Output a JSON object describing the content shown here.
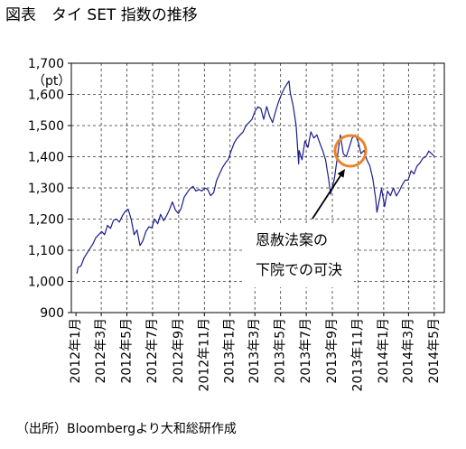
{
  "source": "（出所）Bloombergより大和総研作成",
  "colors": {
    "series": "#1c1c8c",
    "highlight": "#e8852a"
  },
  "chart_data": {
    "type": "line",
    "title": "図表　タイ SET 指数の推移",
    "xlabel": "",
    "ylabel": "（pt）",
    "ylim": [
      900,
      1700
    ],
    "xlim": [
      "2011-12-21",
      "2014-05-25"
    ],
    "grid": true,
    "yticks": [
      {
        "value": 1700,
        "label": "1,700"
      },
      {
        "value": 1600,
        "label": "1,600"
      },
      {
        "value": 1500,
        "label": "1,500"
      },
      {
        "value": 1400,
        "label": "1,400"
      },
      {
        "value": 1300,
        "label": "1,300"
      },
      {
        "value": 1200,
        "label": "1,200"
      },
      {
        "value": 1100,
        "label": "1,100"
      },
      {
        "value": 1000,
        "label": "1,000"
      },
      {
        "value": 900,
        "label": "900"
      }
    ],
    "xticks": [
      {
        "date": "2012-01-01",
        "label": "2012年1月"
      },
      {
        "date": "2012-03-01",
        "label": "2012年3月"
      },
      {
        "date": "2012-05-01",
        "label": "2012年5月"
      },
      {
        "date": "2012-07-01",
        "label": "2012年7月"
      },
      {
        "date": "2012-09-01",
        "label": "2012年9月"
      },
      {
        "date": "2012-11-01",
        "label": "2012年11月"
      },
      {
        "date": "2013-01-01",
        "label": "2013年1月"
      },
      {
        "date": "2013-03-01",
        "label": "2013年3月"
      },
      {
        "date": "2013-05-01",
        "label": "2013年5月"
      },
      {
        "date": "2013-07-01",
        "label": "2013年7月"
      },
      {
        "date": "2013-09-01",
        "label": "2013年9月"
      },
      {
        "date": "2013-11-01",
        "label": "2013年11月"
      },
      {
        "date": "2014-01-01",
        "label": "2014年1月"
      },
      {
        "date": "2014-03-01",
        "label": "2014年3月"
      },
      {
        "date": "2014-05-01",
        "label": "2014年5月"
      }
    ],
    "annotations": [
      "恩赦法案の",
      "下院での可決"
    ],
    "x": [
      "2012-01-03",
      "2012-01-06",
      "2012-01-13",
      "2012-01-20",
      "2012-01-27",
      "2012-02-03",
      "2012-02-10",
      "2012-02-17",
      "2012-02-24",
      "2012-03-02",
      "2012-03-09",
      "2012-03-16",
      "2012-03-23",
      "2012-03-30",
      "2012-04-06",
      "2012-04-13",
      "2012-04-20",
      "2012-04-27",
      "2012-05-04",
      "2012-05-11",
      "2012-05-18",
      "2012-05-25",
      "2012-06-01",
      "2012-06-08",
      "2012-06-15",
      "2012-06-22",
      "2012-06-29",
      "2012-07-06",
      "2012-07-13",
      "2012-07-20",
      "2012-07-27",
      "2012-08-03",
      "2012-08-10",
      "2012-08-17",
      "2012-08-24",
      "2012-08-31",
      "2012-09-07",
      "2012-09-14",
      "2012-09-21",
      "2012-09-28",
      "2012-10-05",
      "2012-10-12",
      "2012-10-19",
      "2012-10-26",
      "2012-11-02",
      "2012-11-09",
      "2012-11-16",
      "2012-11-23",
      "2012-11-30",
      "2012-12-07",
      "2012-12-14",
      "2012-12-21",
      "2012-12-28",
      "2013-01-04",
      "2013-01-11",
      "2013-01-18",
      "2013-01-25",
      "2013-02-01",
      "2013-02-08",
      "2013-02-15",
      "2013-02-22",
      "2013-03-01",
      "2013-03-08",
      "2013-03-15",
      "2013-03-22",
      "2013-03-29",
      "2013-04-05",
      "2013-04-12",
      "2013-04-19",
      "2013-04-26",
      "2013-05-03",
      "2013-05-10",
      "2013-05-17",
      "2013-05-21",
      "2013-05-24",
      "2013-05-31",
      "2013-06-07",
      "2013-06-13",
      "2013-06-14",
      "2013-06-21",
      "2013-06-28",
      "2013-07-05",
      "2013-07-12",
      "2013-07-19",
      "2013-07-26",
      "2013-08-02",
      "2013-08-09",
      "2013-08-16",
      "2013-08-23",
      "2013-08-28",
      "2013-08-30",
      "2013-09-06",
      "2013-09-13",
      "2013-09-20",
      "2013-09-27",
      "2013-10-04",
      "2013-10-11",
      "2013-10-18",
      "2013-10-25",
      "2013-11-01",
      "2013-11-08",
      "2013-11-15",
      "2013-11-22",
      "2013-11-29",
      "2013-12-06",
      "2013-12-13",
      "2013-12-16",
      "2013-12-20",
      "2013-12-27",
      "2014-01-03",
      "2014-01-10",
      "2014-01-17",
      "2014-01-24",
      "2014-01-31",
      "2014-02-07",
      "2014-02-14",
      "2014-02-21",
      "2014-02-28",
      "2014-03-07",
      "2014-03-14",
      "2014-03-21",
      "2014-03-28",
      "2014-04-04",
      "2014-04-11",
      "2014-04-18",
      "2014-04-25",
      "2014-05-02"
    ],
    "y": [
      1025,
      1045,
      1050,
      1075,
      1090,
      1105,
      1120,
      1140,
      1150,
      1160,
      1150,
      1180,
      1170,
      1196,
      1200,
      1190,
      1210,
      1225,
      1232,
      1200,
      1150,
      1165,
      1115,
      1130,
      1160,
      1175,
      1172,
      1200,
      1185,
      1215,
      1195,
      1210,
      1230,
      1255,
      1230,
      1218,
      1235,
      1270,
      1285,
      1298,
      1305,
      1290,
      1295,
      1290,
      1300,
      1295,
      1275,
      1285,
      1324,
      1345,
      1365,
      1380,
      1392,
      1420,
      1445,
      1460,
      1470,
      1480,
      1500,
      1510,
      1520,
      1545,
      1560,
      1555,
      1520,
      1561,
      1530,
      1510,
      1545,
      1575,
      1600,
      1620,
      1635,
      1643,
      1605,
      1562,
      1500,
      1377,
      1420,
      1390,
      1451,
      1430,
      1480,
      1460,
      1470,
      1445,
      1420,
      1390,
      1330,
      1280,
      1294,
      1330,
      1400,
      1470,
      1410,
      1400,
      1430,
      1460,
      1470,
      1450,
      1410,
      1420,
      1390,
      1371,
      1330,
      1265,
      1222,
      1250,
      1298,
      1240,
      1290,
      1275,
      1300,
      1274,
      1290,
      1310,
      1325,
      1325,
      1355,
      1345,
      1370,
      1380,
      1395,
      1400,
      1418,
      1410,
      1400
    ]
  }
}
